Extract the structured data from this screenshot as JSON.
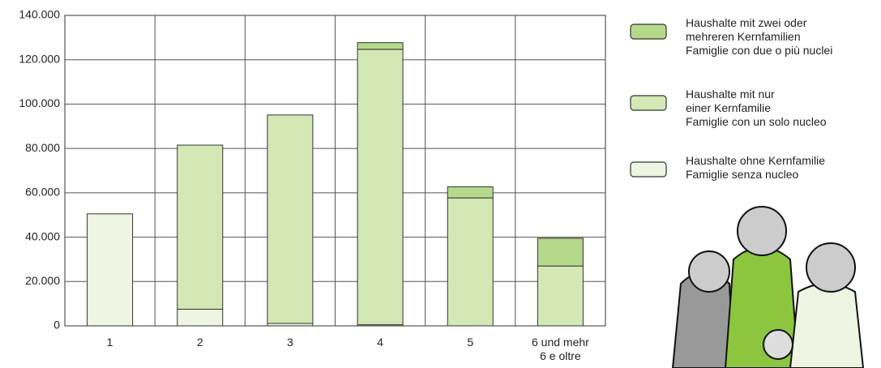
{
  "chart_data": {
    "type": "stacked_bar",
    "categories": [
      "1",
      "2",
      "3",
      "4",
      "5",
      "6 und mehr\n6 e oltre"
    ],
    "series": [
      {
        "name": "Haushalte ohne Kernfamilie\nFamiglie senza nucleo",
        "color": "#eef5e2",
        "values": [
          50500,
          7500,
          1100,
          500,
          0,
          0
        ]
      },
      {
        "name": "Haushalte mit nur\neiner Kernfamilie\nFamiglie con un solo nucleo",
        "color": "#d3e8b4",
        "values": [
          0,
          74000,
          94000,
          124200,
          57700,
          27000
        ]
      },
      {
        "name": "Haushalte mit zwei oder\nmehreren Kernfamilien\nFamiglie con due o più nuclei",
        "color": "#b5d98b",
        "values": [
          0,
          0,
          0,
          3000,
          5000,
          12500
        ]
      }
    ],
    "ylim": [
      0,
      140000
    ],
    "yticks": [
      0,
      {
        "value": 20000,
        "label": "20.000"
      },
      {
        "value": 40000,
        "label": "40.000"
      },
      {
        "value": 60000,
        "label": "60.000"
      },
      {
        "value": 80000,
        "label": "80.000"
      },
      {
        "value": 100000,
        "label": "100.000"
      },
      {
        "value": 120000,
        "label": "120.000"
      },
      {
        "value": 140000,
        "label": "140.000"
      }
    ],
    "grid": true
  }
}
